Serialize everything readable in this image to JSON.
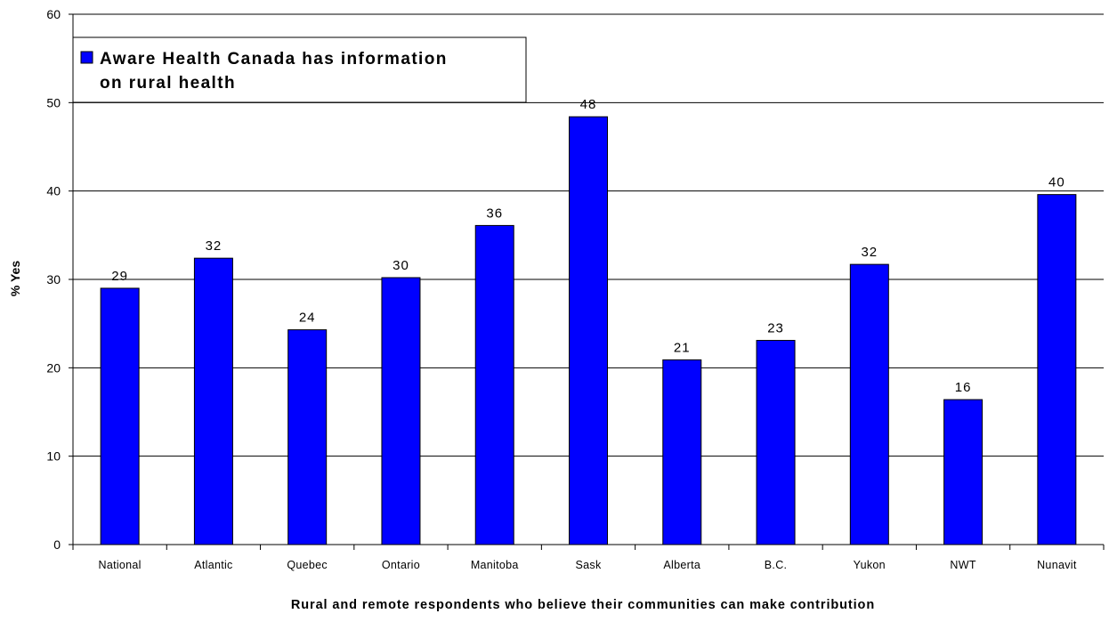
{
  "chart_data": {
    "type": "bar",
    "categories": [
      "National",
      "Atlantic",
      "Quebec",
      "Ontario",
      "Manitoba",
      "Sask",
      "Alberta",
      "B.C.",
      "Yukon",
      "NWT",
      "Nunavit"
    ],
    "series": [
      {
        "name": "Aware Health Canada has information on rural health",
        "values": [
          29,
          32.4,
          24.3,
          30.2,
          36.1,
          48.4,
          20.9,
          23.1,
          31.7,
          16.4,
          39.6
        ],
        "labels": [
          "29",
          "32",
          "24",
          "30",
          "36",
          "48",
          "21",
          "23",
          "32",
          "16",
          "40"
        ],
        "color": "#0000ff"
      }
    ],
    "legend_lines": [
      "Aware Health Canada has information",
      "on rural health"
    ],
    "ylabel": "% Yes",
    "xlabel": "Rural and remote respondents who believe their communities can make contribution",
    "ylim": [
      0,
      60
    ],
    "yticks": [
      "0",
      "10",
      "20",
      "30",
      "40",
      "50",
      "60"
    ],
    "grid": true,
    "legend_position": "top-left"
  }
}
